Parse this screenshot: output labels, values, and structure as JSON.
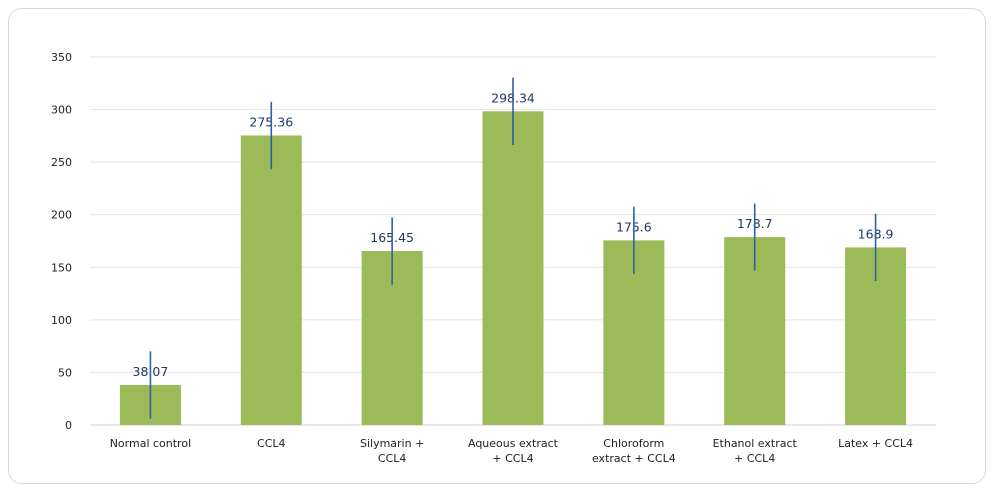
{
  "chart_data": {
    "type": "bar",
    "title": "",
    "xlabel": "",
    "ylabel": "",
    "ylim": [
      0,
      350
    ],
    "yticks": [
      0,
      50,
      100,
      150,
      200,
      250,
      300,
      350
    ],
    "grid": true,
    "legend": "none",
    "categories": [
      [
        "Normal control"
      ],
      [
        "CCL4"
      ],
      [
        "Silymarin +",
        "CCL4"
      ],
      [
        "Aqueous extract",
        "+ CCL4"
      ],
      [
        "Chloroform",
        "extract +  CCL4"
      ],
      [
        "Ethanol extract",
        "+ CCL4"
      ],
      [
        "Latex +  CCL4"
      ]
    ],
    "values": [
      38.07,
      275.36,
      165.45,
      298.34,
      175.6,
      178.7,
      168.9
    ],
    "value_labels": [
      "38.07",
      "275.36",
      "165.45",
      "298.34",
      "175.6",
      "178.7",
      "168.9"
    ],
    "error": [
      32,
      32,
      32,
      32,
      32,
      32,
      32
    ],
    "colors": {
      "bar": "#9bbb59",
      "error_bar": "#2e5fa7",
      "grid": "#e3e3e3",
      "data_label": "#1f3864"
    }
  }
}
